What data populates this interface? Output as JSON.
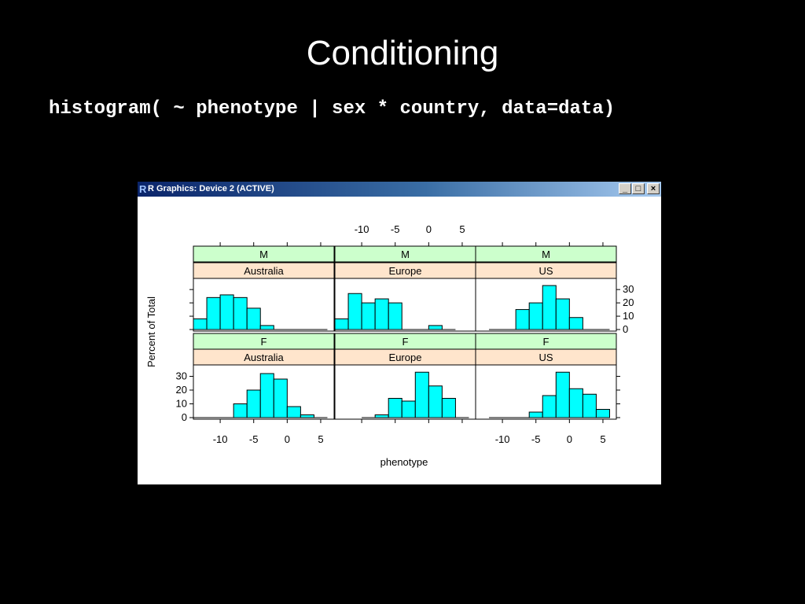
{
  "slide": {
    "title": "Conditioning",
    "code": "histogram( ~ phenotype | sex * country, data=data)"
  },
  "window": {
    "title": "R Graphics: Device 2 (ACTIVE)",
    "icon": "r-logo-icon",
    "buttons": {
      "minimize": "minimize-icon",
      "maximize": "maximize-icon",
      "close": "close-icon"
    }
  },
  "colors": {
    "bar_fill": "#00ffff",
    "strip_sex": "#ccffcc",
    "strip_country": "#ffe5cc",
    "background": "#000000"
  },
  "chart_data": {
    "type": "bar",
    "xlabel": "phenotype",
    "ylabel": "Percent of Total",
    "xlim": [
      -14,
      7
    ],
    "ylim": [
      0,
      36
    ],
    "x_ticks": [
      -10,
      -5,
      0,
      5
    ],
    "y_ticks": [
      0,
      10,
      20,
      30
    ],
    "bin_width": 2,
    "panels": [
      {
        "sex": "M",
        "country": "Australia",
        "bins": [
          [
            -13,
            8
          ],
          [
            -11,
            24
          ],
          [
            -9,
            26
          ],
          [
            -7,
            24
          ],
          [
            -5,
            16
          ],
          [
            -3,
            3
          ],
          [
            -1,
            0
          ],
          [
            1,
            0
          ],
          [
            3,
            0
          ],
          [
            5,
            0
          ]
        ]
      },
      {
        "sex": "M",
        "country": "Europe",
        "bins": [
          [
            -13,
            8
          ],
          [
            -11,
            27
          ],
          [
            -9,
            20
          ],
          [
            -7,
            23
          ],
          [
            -5,
            20
          ],
          [
            -3,
            0
          ],
          [
            -1,
            0
          ],
          [
            1,
            3
          ],
          [
            3,
            0
          ]
        ]
      },
      {
        "sex": "M",
        "country": "US",
        "bins": [
          [
            -11,
            0
          ],
          [
            -9,
            0
          ],
          [
            -7,
            15
          ],
          [
            -5,
            20
          ],
          [
            -3,
            33
          ],
          [
            -1,
            23
          ],
          [
            1,
            9
          ],
          [
            3,
            0
          ],
          [
            5,
            0
          ]
        ]
      },
      {
        "sex": "F",
        "country": "Australia",
        "bins": [
          [
            -13,
            0
          ],
          [
            -11,
            0
          ],
          [
            -9,
            0
          ],
          [
            -7,
            10
          ],
          [
            -5,
            20
          ],
          [
            -3,
            32
          ],
          [
            -1,
            28
          ],
          [
            1,
            8
          ],
          [
            3,
            2
          ],
          [
            5,
            0
          ]
        ]
      },
      {
        "sex": "F",
        "country": "Europe",
        "bins": [
          [
            -9,
            0
          ],
          [
            -7,
            2
          ],
          [
            -5,
            14
          ],
          [
            -3,
            12
          ],
          [
            -1,
            33
          ],
          [
            1,
            23
          ],
          [
            3,
            14
          ],
          [
            5,
            0
          ]
        ]
      },
      {
        "sex": "F",
        "country": "US",
        "bins": [
          [
            -11,
            0
          ],
          [
            -9,
            0
          ],
          [
            -7,
            0
          ],
          [
            -5,
            4
          ],
          [
            -3,
            16
          ],
          [
            -1,
            33
          ],
          [
            1,
            21
          ],
          [
            3,
            17
          ],
          [
            5,
            6
          ]
        ]
      }
    ]
  }
}
